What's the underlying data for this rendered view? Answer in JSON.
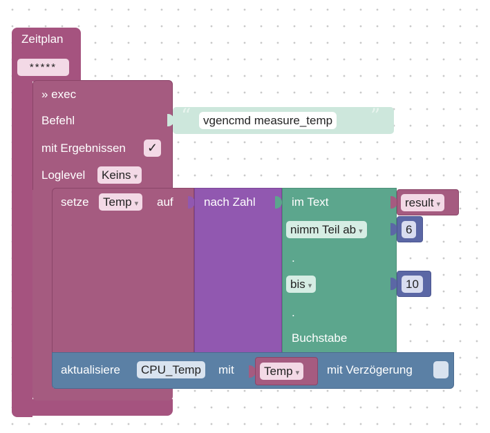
{
  "schedule": {
    "title": "Zeitplan",
    "pattern": "*****"
  },
  "exec": {
    "header": "» exec",
    "command_label": "Befehl",
    "command_value": "vgencmd measure_temp",
    "results_label": "mit Ergebnissen",
    "results_checked": "✓",
    "loglevel_label": "Loglevel",
    "loglevel_value": "Keins"
  },
  "set_var": {
    "prefix": "setze",
    "variable": "Temp",
    "suffix": "auf",
    "to_number_label": "nach Zahl",
    "in_text_label": "im Text",
    "text_var": "result",
    "from_mode": "nimm Teil ab",
    "from_index": "6",
    "dot_1": ".",
    "to_mode": "bis",
    "to_index": "10",
    "dot_2": ".",
    "unit_label": "Buchstabe"
  },
  "update": {
    "prefix": "aktualisiere",
    "state": "CPU_Temp",
    "with_label": "mit",
    "value_var": "Temp",
    "delay_label": "mit Verzögerung"
  },
  "colors": {
    "schedule": "#a5537f",
    "exec": "#a55b80",
    "math": "#9158b0",
    "text": "#5ca68d",
    "number": "#5b67a5",
    "update": "#5b80a5"
  }
}
